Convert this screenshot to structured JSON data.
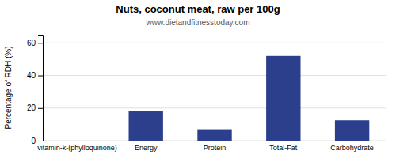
{
  "chart_data": {
    "type": "bar",
    "title": "Nuts, coconut meat, raw per 100g",
    "subtitle": "www.dietandfitnesstoday.com",
    "categories": [
      "vitamin-k-(phylloquinone)",
      "Energy",
      "Protein",
      "Total-Fat",
      "Carbohydrate"
    ],
    "values": [
      0,
      18,
      7,
      52,
      12.5
    ],
    "color": "#2b3f8c",
    "ylabel": "Percentage of RDH (%)",
    "ylim": [
      0,
      65
    ],
    "yticks": [
      0,
      20,
      40,
      60
    ],
    "grid": true
  }
}
